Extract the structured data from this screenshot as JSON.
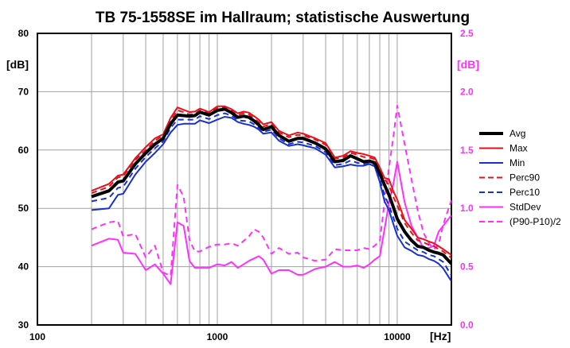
{
  "chart_data": {
    "type": "line",
    "title": "TB 75-1558SE im Hallraum;  statistische Auswertung",
    "x_scale": "log",
    "xlim": [
      100,
      20000
    ],
    "x_ticks": [
      "100",
      "1000",
      "10000"
    ],
    "xlabel": "[Hz]",
    "ylabel_left": "[dB]",
    "ylim_left": [
      30,
      80
    ],
    "y_ticks_left": [
      "30",
      "40",
      "50",
      "60",
      "70",
      "80"
    ],
    "ylabel_right": "[dB]",
    "ylim_right": [
      0.0,
      2.5
    ],
    "y_ticks_right": [
      "0.0",
      "0.5",
      "1.0",
      "1.5",
      "2.0",
      "2.5"
    ],
    "grid": true,
    "legend_position": "right",
    "colors": {
      "black": "#000000",
      "red": "#e8101a",
      "blue": "#1830d0",
      "magenta": "#ff30ff",
      "grid": "#a0a0a0",
      "right_axis": "#ff30ff"
    },
    "x": [
      200,
      250,
      280,
      300,
      350,
      400,
      450,
      500,
      550,
      600,
      650,
      700,
      750,
      800,
      900,
      1000,
      1100,
      1200,
      1300,
      1400,
      1500,
      1600,
      1700,
      1800,
      2000,
      2200,
      2500,
      2800,
      3000,
      3500,
      4000,
      4500,
      5000,
      5500,
      6000,
      6500,
      7000,
      7500,
      8000,
      8500,
      9000,
      9500,
      10000,
      11000,
      12000,
      13000,
      14000,
      15000,
      16000,
      17000,
      18000,
      20000
    ],
    "series": [
      {
        "name": "Avg",
        "axis": "left",
        "color": "#000000",
        "dash": false,
        "width": 4,
        "values": [
          52.0,
          53.0,
          54.5,
          54.7,
          57.6,
          59.5,
          61.0,
          62.0,
          64.5,
          66.0,
          65.9,
          65.8,
          65.9,
          66.5,
          66.0,
          66.8,
          67.0,
          66.4,
          65.6,
          65.8,
          65.6,
          65.0,
          64.3,
          63.5,
          64.0,
          62.5,
          61.5,
          62.0,
          62.0,
          61.2,
          60.2,
          58.0,
          58.2,
          59.0,
          58.5,
          58.0,
          58.1,
          57.8,
          56.0,
          54.0,
          52.3,
          50.3,
          48.2,
          46.0,
          44.5,
          43.5,
          43.3,
          42.8,
          42.5,
          42.3,
          42.0,
          40.5
        ]
      },
      {
        "name": "Max",
        "axis": "left",
        "color": "#e8101a",
        "dash": false,
        "width": 2,
        "values": [
          53.0,
          54.2,
          55.6,
          55.8,
          58.6,
          60.5,
          62.0,
          62.7,
          65.5,
          67.3,
          66.9,
          66.5,
          66.6,
          67.1,
          66.5,
          67.5,
          67.5,
          67.0,
          66.3,
          66.6,
          66.4,
          65.8,
          65.2,
          64.4,
          64.8,
          63.3,
          62.5,
          63.0,
          62.8,
          62.0,
          61.2,
          58.7,
          59.0,
          59.8,
          59.5,
          59.3,
          59.0,
          58.7,
          57.0,
          55.2,
          55.0,
          53.0,
          51.5,
          48.0,
          46.5,
          45.0,
          44.7,
          44.3,
          44.0,
          43.5,
          43.0,
          42.0
        ]
      },
      {
        "name": "Min",
        "axis": "left",
        "color": "#1830d0",
        "dash": false,
        "width": 2,
        "values": [
          49.7,
          50.0,
          52.3,
          52.5,
          55.8,
          58.0,
          59.5,
          61.0,
          63.0,
          64.3,
          64.5,
          64.5,
          64.5,
          65.1,
          64.6,
          65.2,
          65.7,
          65.5,
          64.8,
          64.5,
          64.3,
          64.0,
          63.5,
          62.8,
          63.0,
          61.6,
          60.7,
          61.0,
          60.8,
          60.3,
          59.2,
          57.0,
          57.2,
          57.5,
          57.3,
          57.3,
          57.6,
          57.2,
          54.5,
          51.2,
          49.7,
          47.4,
          45.3,
          43.3,
          42.7,
          42.0,
          41.8,
          41.3,
          41.0,
          40.5,
          39.7,
          37.5
        ]
      },
      {
        "name": "Perc90",
        "axis": "left",
        "color": "#e8101a",
        "dash": true,
        "width": 2,
        "values": [
          52.6,
          53.7,
          55.3,
          55.5,
          58.3,
          60.0,
          61.6,
          62.5,
          65.0,
          66.8,
          66.5,
          66.1,
          66.2,
          66.8,
          66.3,
          67.2,
          67.3,
          66.8,
          66.0,
          66.3,
          66.1,
          65.4,
          64.8,
          64.0,
          64.5,
          63.0,
          62.2,
          62.6,
          62.5,
          61.8,
          60.9,
          58.5,
          58.7,
          59.5,
          59.2,
          58.8,
          58.7,
          58.4,
          56.8,
          55.0,
          54.0,
          52.0,
          50.5,
          47.5,
          45.8,
          44.5,
          44.2,
          43.7,
          43.5,
          43.0,
          42.6,
          41.5
        ]
      },
      {
        "name": "Perc10",
        "axis": "left",
        "color": "#1830d0",
        "dash": true,
        "width": 2,
        "values": [
          51.2,
          51.8,
          53.5,
          53.7,
          56.8,
          58.8,
          60.3,
          61.5,
          63.8,
          65.2,
          65.2,
          65.2,
          65.2,
          65.8,
          65.3,
          66.0,
          66.3,
          65.9,
          65.1,
          65.0,
          64.9,
          64.4,
          63.8,
          63.1,
          63.5,
          62.0,
          61.0,
          61.4,
          61.3,
          60.7,
          59.6,
          57.4,
          57.6,
          58.2,
          57.8,
          57.6,
          57.8,
          57.5,
          55.0,
          52.3,
          50.5,
          48.5,
          46.5,
          44.3,
          43.5,
          42.8,
          42.5,
          42.0,
          41.8,
          41.3,
          40.8,
          38.5
        ]
      },
      {
        "name": "StdDev",
        "axis": "right",
        "color": "#ff30ff",
        "dash": false,
        "width": 2,
        "values": [
          0.68,
          0.74,
          0.73,
          0.62,
          0.61,
          0.47,
          0.52,
          0.44,
          0.35,
          0.88,
          0.85,
          0.55,
          0.49,
          0.49,
          0.49,
          0.52,
          0.51,
          0.54,
          0.49,
          0.52,
          0.55,
          0.57,
          0.59,
          0.56,
          0.44,
          0.47,
          0.47,
          0.43,
          0.43,
          0.48,
          0.5,
          0.54,
          0.5,
          0.5,
          0.51,
          0.49,
          0.52,
          0.56,
          0.59,
          0.82,
          1.05,
          1.2,
          1.4,
          1.05,
          0.85,
          0.75,
          0.66,
          0.66,
          0.68,
          0.8,
          0.85,
          0.94
        ]
      },
      {
        "name": "(P90-P10)/2",
        "axis": "right",
        "color": "#ff30ff",
        "dash": true,
        "width": 2,
        "values": [
          0.82,
          0.88,
          0.89,
          0.76,
          0.78,
          0.58,
          0.68,
          0.45,
          0.42,
          1.2,
          1.1,
          0.73,
          0.63,
          0.63,
          0.67,
          0.69,
          0.69,
          0.7,
          0.68,
          0.72,
          0.76,
          0.82,
          0.8,
          0.75,
          0.61,
          0.66,
          0.61,
          0.62,
          0.58,
          0.55,
          0.56,
          0.65,
          0.64,
          0.64,
          0.64,
          0.66,
          0.65,
          0.68,
          0.72,
          1.05,
          1.35,
          1.6,
          1.88,
          1.55,
          1.25,
          0.98,
          0.79,
          0.7,
          0.65,
          0.69,
          0.86,
          1.07
        ]
      }
    ]
  }
}
